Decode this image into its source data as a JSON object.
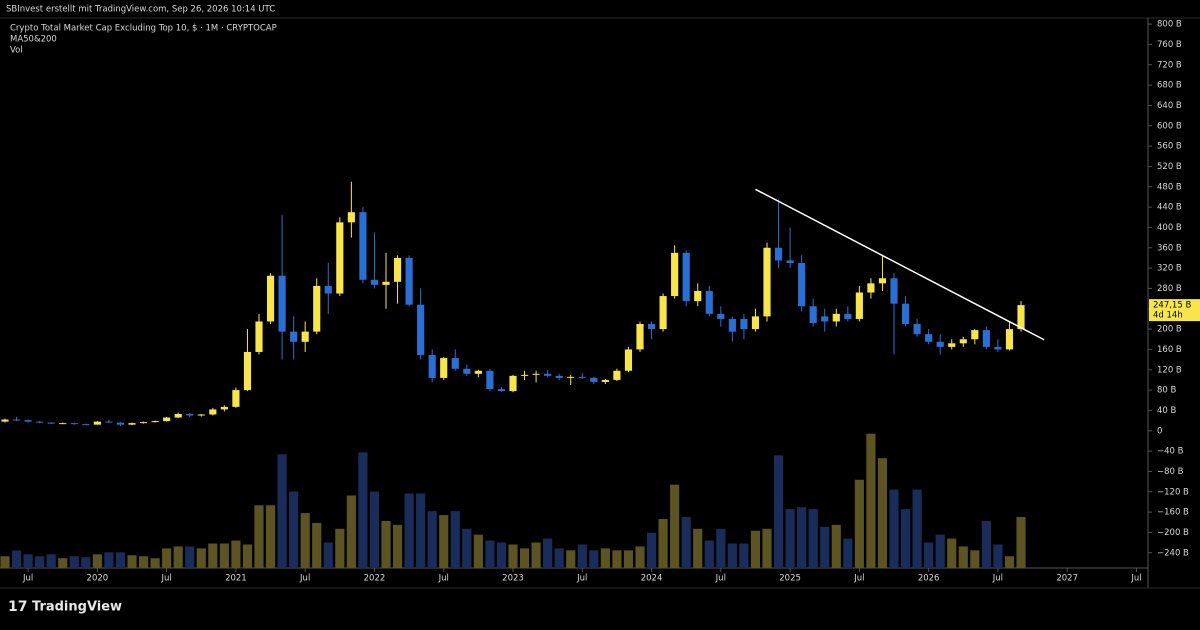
{
  "header": "SBInvest erstellt mit TradingView.com, Sep 26, 2026 10:14 UTC",
  "footer_logo": "TradingView",
  "chart_data": {
    "type": "candlestick",
    "title": "Crypto Total Market Cap Excluding Top 10, $ · 1M · CRYPTOCAP",
    "indicators": [
      "MA50&200",
      "Vol"
    ],
    "up_color": "#f7e54a",
    "down_color": "#2a6fd4",
    "volume_up_color": "#5c5423",
    "volume_down_color": "#1a2c5a",
    "xlim": [
      "2019-05",
      "2027-08"
    ],
    "ylim": [
      -270,
      812
    ],
    "volume_lim": [
      0,
      140
    ],
    "yticks": [
      {
        "value": 800,
        "label": "800 B"
      },
      {
        "value": 760,
        "label": "760 B"
      },
      {
        "value": 720,
        "label": "720 B"
      },
      {
        "value": 680,
        "label": "680 B"
      },
      {
        "value": 640,
        "label": "640 B"
      },
      {
        "value": 600,
        "label": "600 B"
      },
      {
        "value": 560,
        "label": "560 B"
      },
      {
        "value": 520,
        "label": "520 B"
      },
      {
        "value": 480,
        "label": "480 B"
      },
      {
        "value": 440,
        "label": "440 B"
      },
      {
        "value": 400,
        "label": "400 B"
      },
      {
        "value": 360,
        "label": "360 B"
      },
      {
        "value": 320,
        "label": "320 B"
      },
      {
        "value": 280,
        "label": "280 B"
      },
      {
        "value": 240,
        "label": "240 B"
      },
      {
        "value": 200,
        "label": "200 B"
      },
      {
        "value": 160,
        "label": "160 B"
      },
      {
        "value": 120,
        "label": "120 B"
      },
      {
        "value": 80,
        "label": "80 B"
      },
      {
        "value": 40,
        "label": "40 B"
      },
      0,
      {
        "value": -40,
        "label": "−40 B"
      },
      {
        "value": -80,
        "label": "−80 B"
      },
      {
        "value": -120,
        "label": "−120 B"
      },
      {
        "value": -160,
        "label": "−160 B"
      },
      {
        "value": -200,
        "label": "−200 B"
      },
      {
        "value": -240,
        "label": "−240 B"
      }
    ],
    "xticks": [
      {
        "value": "2019-07",
        "label": "Jul"
      },
      {
        "value": "2020-01",
        "label": "2020"
      },
      {
        "value": "2020-07",
        "label": "Jul"
      },
      {
        "value": "2021-01",
        "label": "2021"
      },
      {
        "value": "2021-07",
        "label": "Jul"
      },
      {
        "value": "2022-01",
        "label": "2022"
      },
      {
        "value": "2022-07",
        "label": "Jul"
      },
      {
        "value": "2023-01",
        "label": "2023"
      },
      {
        "value": "2023-07",
        "label": "Jul"
      },
      {
        "value": "2024-01",
        "label": "2024"
      },
      {
        "value": "2024-07",
        "label": "Jul"
      },
      {
        "value": "2025-01",
        "label": "2025"
      },
      {
        "value": "2025-07",
        "label": "Jul"
      },
      {
        "value": "2026-01",
        "label": "2026"
      },
      {
        "value": "2026-07",
        "label": "Jul"
      },
      {
        "value": "2027-01",
        "label": "2027"
      },
      {
        "value": "2027-07",
        "label": "Jul"
      }
    ],
    "last_price": {
      "value": 247.15,
      "label": "247,15 B"
    },
    "countdown": "4d 14h",
    "trendline": {
      "color": "#ffffff",
      "x": [
        "2024-10",
        "2026-11"
      ],
      "values": [
        475,
        179
      ]
    },
    "candles": [
      {
        "date": "2019-05",
        "open": 18,
        "high": 24,
        "low": 16,
        "close": 22,
        "volume": 12
      },
      {
        "date": "2019-06",
        "open": 22,
        "high": 27,
        "low": 19,
        "close": 21,
        "volume": 18
      },
      {
        "date": "2019-07",
        "open": 21,
        "high": 22,
        "low": 16,
        "close": 18,
        "volume": 14
      },
      {
        "date": "2019-08",
        "open": 18,
        "high": 19,
        "low": 15,
        "close": 16,
        "volume": 12
      },
      {
        "date": "2019-09",
        "open": 16,
        "high": 17,
        "low": 13,
        "close": 14,
        "volume": 14
      },
      {
        "date": "2019-10",
        "open": 14,
        "high": 16,
        "low": 13,
        "close": 15,
        "volume": 10
      },
      {
        "date": "2019-11",
        "open": 15,
        "high": 16,
        "low": 12,
        "close": 13,
        "volume": 12
      },
      {
        "date": "2019-12",
        "open": 13,
        "high": 14,
        "low": 11,
        "close": 12,
        "volume": 11
      },
      {
        "date": "2020-01",
        "open": 12,
        "high": 19,
        "low": 12,
        "close": 18,
        "volume": 14
      },
      {
        "date": "2020-02",
        "open": 18,
        "high": 22,
        "low": 15,
        "close": 16,
        "volume": 16
      },
      {
        "date": "2020-03",
        "open": 16,
        "high": 17,
        "low": 9,
        "close": 12,
        "volume": 16
      },
      {
        "date": "2020-04",
        "open": 12,
        "high": 16,
        "low": 11,
        "close": 15,
        "volume": 13
      },
      {
        "date": "2020-05",
        "open": 15,
        "high": 18,
        "low": 14,
        "close": 17,
        "volume": 12
      },
      {
        "date": "2020-06",
        "open": 17,
        "high": 20,
        "low": 16,
        "close": 19,
        "volume": 10
      },
      {
        "date": "2020-07",
        "open": 19,
        "high": 27,
        "low": 18,
        "close": 26,
        "volume": 20
      },
      {
        "date": "2020-08",
        "open": 26,
        "high": 36,
        "low": 25,
        "close": 33,
        "volume": 22
      },
      {
        "date": "2020-09",
        "open": 33,
        "high": 35,
        "low": 27,
        "close": 30,
        "volume": 22
      },
      {
        "date": "2020-10",
        "open": 30,
        "high": 33,
        "low": 28,
        "close": 32,
        "volume": 20
      },
      {
        "date": "2020-11",
        "open": 32,
        "high": 45,
        "low": 30,
        "close": 42,
        "volume": 25
      },
      {
        "date": "2020-12",
        "open": 42,
        "high": 50,
        "low": 38,
        "close": 47,
        "volume": 25
      },
      {
        "date": "2021-01",
        "open": 47,
        "high": 85,
        "low": 45,
        "close": 80,
        "volume": 28
      },
      {
        "date": "2021-02",
        "open": 80,
        "high": 200,
        "low": 78,
        "close": 155,
        "volume": 24
      },
      {
        "date": "2021-03",
        "open": 155,
        "high": 230,
        "low": 150,
        "close": 215,
        "volume": 64
      },
      {
        "date": "2021-04",
        "open": 215,
        "high": 310,
        "low": 210,
        "close": 305,
        "volume": 64
      },
      {
        "date": "2021-05",
        "open": 305,
        "high": 425,
        "low": 140,
        "close": 195,
        "volume": 116
      },
      {
        "date": "2021-06",
        "open": 195,
        "high": 225,
        "low": 140,
        "close": 175,
        "volume": 78
      },
      {
        "date": "2021-07",
        "open": 175,
        "high": 215,
        "low": 155,
        "close": 195,
        "volume": 56
      },
      {
        "date": "2021-08",
        "open": 195,
        "high": 300,
        "low": 190,
        "close": 285,
        "volume": 46
      },
      {
        "date": "2021-09",
        "open": 285,
        "high": 330,
        "low": 230,
        "close": 270,
        "volume": 26
      },
      {
        "date": "2021-10",
        "open": 270,
        "high": 420,
        "low": 265,
        "close": 410,
        "volume": 40
      },
      {
        "date": "2021-11",
        "open": 410,
        "high": 490,
        "low": 380,
        "close": 430,
        "volume": 74
      },
      {
        "date": "2021-12",
        "open": 430,
        "high": 440,
        "low": 290,
        "close": 297,
        "volume": 118
      },
      {
        "date": "2022-01",
        "open": 297,
        "high": 390,
        "low": 280,
        "close": 287,
        "volume": 78
      },
      {
        "date": "2022-02",
        "open": 287,
        "high": 350,
        "low": 240,
        "close": 293,
        "volume": 48
      },
      {
        "date": "2022-03",
        "open": 293,
        "high": 345,
        "low": 250,
        "close": 340,
        "volume": 44
      },
      {
        "date": "2022-04",
        "open": 340,
        "high": 345,
        "low": 245,
        "close": 248,
        "volume": 76
      },
      {
        "date": "2022-05",
        "open": 248,
        "high": 280,
        "low": 140,
        "close": 149,
        "volume": 76
      },
      {
        "date": "2022-06",
        "open": 149,
        "high": 160,
        "low": 95,
        "close": 104,
        "volume": 58
      },
      {
        "date": "2022-07",
        "open": 104,
        "high": 145,
        "low": 100,
        "close": 143,
        "volume": 54
      },
      {
        "date": "2022-08",
        "open": 143,
        "high": 160,
        "low": 118,
        "close": 122,
        "volume": 58
      },
      {
        "date": "2022-09",
        "open": 122,
        "high": 130,
        "low": 108,
        "close": 112,
        "volume": 40
      },
      {
        "date": "2022-10",
        "open": 112,
        "high": 120,
        "low": 105,
        "close": 118,
        "volume": 34
      },
      {
        "date": "2022-11",
        "open": 118,
        "high": 122,
        "low": 78,
        "close": 82,
        "volume": 28
      },
      {
        "date": "2022-12",
        "open": 82,
        "high": 86,
        "low": 76,
        "close": 78,
        "volume": 26
      },
      {
        "date": "2023-01",
        "open": 78,
        "high": 110,
        "low": 76,
        "close": 108,
        "volume": 24
      },
      {
        "date": "2023-02",
        "open": 108,
        "high": 118,
        "low": 100,
        "close": 110,
        "volume": 20
      },
      {
        "date": "2023-03",
        "open": 110,
        "high": 118,
        "low": 95,
        "close": 112,
        "volume": 26
      },
      {
        "date": "2023-04",
        "open": 112,
        "high": 120,
        "low": 106,
        "close": 108,
        "volume": 30
      },
      {
        "date": "2023-05",
        "open": 108,
        "high": 112,
        "low": 100,
        "close": 104,
        "volume": 20
      },
      {
        "date": "2023-06",
        "open": 104,
        "high": 110,
        "low": 90,
        "close": 106,
        "volume": 18
      },
      {
        "date": "2023-07",
        "open": 106,
        "high": 114,
        "low": 102,
        "close": 104,
        "volume": 24
      },
      {
        "date": "2023-08",
        "open": 104,
        "high": 106,
        "low": 92,
        "close": 96,
        "volume": 18
      },
      {
        "date": "2023-09",
        "open": 96,
        "high": 102,
        "low": 92,
        "close": 100,
        "volume": 20
      },
      {
        "date": "2023-10",
        "open": 100,
        "high": 122,
        "low": 98,
        "close": 118,
        "volume": 18
      },
      {
        "date": "2023-11",
        "open": 118,
        "high": 165,
        "low": 115,
        "close": 160,
        "volume": 18
      },
      {
        "date": "2023-12",
        "open": 160,
        "high": 215,
        "low": 155,
        "close": 210,
        "volume": 22
      },
      {
        "date": "2024-01",
        "open": 210,
        "high": 215,
        "low": 180,
        "close": 200,
        "volume": 36
      },
      {
        "date": "2024-02",
        "open": 200,
        "high": 270,
        "low": 195,
        "close": 265,
        "volume": 50
      },
      {
        "date": "2024-03",
        "open": 265,
        "high": 365,
        "low": 260,
        "close": 350,
        "volume": 85
      },
      {
        "date": "2024-04",
        "open": 350,
        "high": 355,
        "low": 245,
        "close": 255,
        "volume": 52
      },
      {
        "date": "2024-05",
        "open": 255,
        "high": 290,
        "low": 245,
        "close": 275,
        "volume": 40
      },
      {
        "date": "2024-06",
        "open": 275,
        "high": 285,
        "low": 225,
        "close": 230,
        "volume": 28
      },
      {
        "date": "2024-07",
        "open": 230,
        "high": 245,
        "low": 205,
        "close": 220,
        "volume": 40
      },
      {
        "date": "2024-08",
        "open": 220,
        "high": 225,
        "low": 175,
        "close": 195,
        "volume": 25
      },
      {
        "date": "2024-09",
        "open": 220,
        "high": 230,
        "low": 180,
        "close": 200,
        "volume": 25
      },
      {
        "date": "2024-10",
        "open": 200,
        "high": 240,
        "low": 195,
        "close": 225,
        "volume": 38
      },
      {
        "date": "2024-11",
        "open": 225,
        "high": 370,
        "low": 215,
        "close": 360,
        "volume": 40
      },
      {
        "date": "2024-12",
        "open": 360,
        "high": 455,
        "low": 320,
        "close": 335,
        "volume": 115
      },
      {
        "date": "2025-01",
        "open": 335,
        "high": 400,
        "low": 320,
        "close": 330,
        "volume": 60
      },
      {
        "date": "2025-02",
        "open": 330,
        "high": 345,
        "low": 235,
        "close": 245,
        "volume": 62
      },
      {
        "date": "2025-03",
        "open": 245,
        "high": 260,
        "low": 205,
        "close": 212,
        "volume": 60
      },
      {
        "date": "2025-04",
        "open": 225,
        "high": 240,
        "low": 195,
        "close": 215,
        "volume": 42
      },
      {
        "date": "2025-05",
        "open": 215,
        "high": 240,
        "low": 205,
        "close": 230,
        "volume": 44
      },
      {
        "date": "2025-06",
        "open": 230,
        "high": 245,
        "low": 215,
        "close": 220,
        "volume": 30
      },
      {
        "date": "2025-07",
        "open": 220,
        "high": 285,
        "low": 215,
        "close": 272,
        "volume": 90
      },
      {
        "date": "2025-08",
        "open": 272,
        "high": 300,
        "low": 260,
        "close": 290,
        "volume": 137
      },
      {
        "date": "2025-09",
        "open": 290,
        "high": 345,
        "low": 275,
        "close": 300,
        "volume": 112
      },
      {
        "date": "2025-10",
        "open": 300,
        "high": 310,
        "low": 150,
        "close": 250,
        "volume": 80
      },
      {
        "date": "2025-11",
        "open": 250,
        "high": 265,
        "low": 205,
        "close": 210,
        "volume": 60
      },
      {
        "date": "2025-12",
        "open": 210,
        "high": 220,
        "low": 185,
        "close": 190,
        "volume": 80
      },
      {
        "date": "2026-01",
        "open": 190,
        "high": 200,
        "low": 170,
        "close": 175,
        "volume": 26
      },
      {
        "date": "2026-02",
        "open": 175,
        "high": 190,
        "low": 150,
        "close": 165,
        "volume": 34
      },
      {
        "date": "2026-03",
        "open": 165,
        "high": 180,
        "low": 160,
        "close": 172,
        "volume": 30
      },
      {
        "date": "2026-04",
        "open": 172,
        "high": 185,
        "low": 165,
        "close": 180,
        "volume": 22
      },
      {
        "date": "2026-05",
        "open": 180,
        "high": 200,
        "low": 170,
        "close": 198,
        "volume": 18
      },
      {
        "date": "2026-06",
        "open": 198,
        "high": 205,
        "low": 160,
        "close": 165,
        "volume": 48
      },
      {
        "date": "2026-07",
        "open": 165,
        "high": 180,
        "low": 155,
        "close": 160,
        "volume": 24
      },
      {
        "date": "2026-08",
        "open": 160,
        "high": 215,
        "low": 158,
        "close": 200,
        "volume": 12
      },
      {
        "date": "2026-09",
        "open": 200,
        "high": 255,
        "low": 195,
        "close": 247.15,
        "volume": 52
      }
    ]
  }
}
